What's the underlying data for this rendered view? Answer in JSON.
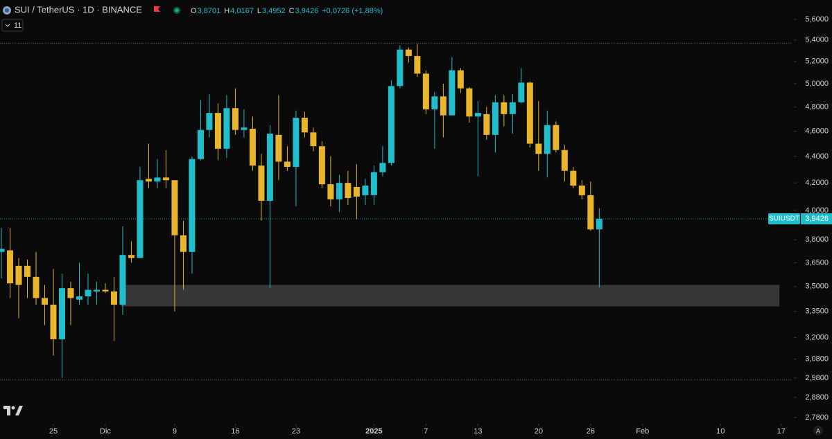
{
  "chart_data": {
    "type": "candlestick",
    "header": {
      "symbol": "SUI / TetherUS · 1D · BINANCE",
      "open_label": "O",
      "open": "3,8701",
      "high_label": "H",
      "high": "4,0167",
      "low_label": "L",
      "low": "3,4952",
      "close_label": "C",
      "close": "3,9426",
      "change": "+0,0726 (+1,88%)",
      "indicator": "11"
    },
    "x": [
      0,
      1,
      2,
      3,
      4,
      5,
      6,
      7,
      8,
      9,
      10,
      11,
      12,
      13,
      14,
      15,
      16,
      17,
      18,
      19,
      20,
      21,
      22,
      23,
      24,
      25,
      26,
      27,
      28,
      29,
      30,
      31,
      32,
      33,
      34,
      35,
      36,
      37,
      38,
      39,
      40,
      41,
      42,
      43,
      44,
      45,
      46,
      47,
      48,
      49,
      50,
      51,
      52,
      53,
      54,
      55,
      56,
      57,
      58,
      59,
      60,
      61,
      62,
      63,
      64,
      65,
      66,
      67,
      68,
      69
    ],
    "open": [
      3.72,
      3.73,
      3.63,
      3.63,
      3.56,
      3.43,
      3.39,
      3.19,
      3.49,
      3.42,
      3.44,
      3.47,
      3.48,
      3.47,
      3.39,
      3.7,
      3.68,
      4.23,
      4.21,
      4.24,
      4.22,
      3.83,
      3.72,
      4.38,
      4.61,
      4.75,
      4.46,
      4.79,
      4.61,
      4.62,
      4.33,
      4.07,
      4.57,
      4.36,
      4.32,
      4.71,
      4.59,
      4.48,
      4.19,
      4.08,
      4.2,
      4.17,
      4.11,
      4.11,
      4.28,
      4.35,
      4.98,
      5.31,
      5.25,
      5.09,
      4.78,
      4.89,
      4.73,
      5.12,
      4.96,
      4.72,
      4.74,
      4.57,
      4.84,
      4.74,
      4.84,
      5.01,
      4.5,
      4.42,
      4.65,
      4.45,
      4.29,
      4.18,
      4.11,
      3.8701
    ],
    "high": [
      3.88,
      3.88,
      3.68,
      3.67,
      3.72,
      3.51,
      3.61,
      3.58,
      3.53,
      3.65,
      3.58,
      3.53,
      3.52,
      3.56,
      3.89,
      3.79,
      4.32,
      4.5,
      4.38,
      4.45,
      4.22,
      3.93,
      4.4,
      4.86,
      4.91,
      4.83,
      4.9,
      4.96,
      4.78,
      4.72,
      4.42,
      4.65,
      4.9,
      4.48,
      4.77,
      4.76,
      4.63,
      4.52,
      4.4,
      4.26,
      4.29,
      4.34,
      4.23,
      4.33,
      4.48,
      5.03,
      5.35,
      5.33,
      5.36,
      5.12,
      4.93,
      5.0,
      5.24,
      5.14,
      4.97,
      4.85,
      4.8,
      4.9,
      4.9,
      4.91,
      5.14,
      5.02,
      4.85,
      4.77,
      4.68,
      4.49,
      4.32,
      4.22,
      4.21,
      4.0167
    ],
    "low": [
      3.55,
      3.43,
      3.31,
      3.43,
      3.39,
      3.27,
      3.1,
      2.98,
      3.27,
      3.39,
      3.39,
      3.39,
      3.46,
      3.18,
      3.33,
      3.65,
      3.68,
      4.16,
      4.16,
      4.16,
      3.35,
      3.48,
      3.58,
      4.37,
      4.55,
      4.37,
      4.39,
      4.57,
      4.55,
      4.29,
      3.93,
      3.49,
      4.22,
      4.29,
      4.03,
      4.55,
      4.44,
      4.16,
      4.03,
      3.99,
      4.04,
      3.94,
      4.04,
      4.04,
      4.25,
      4.33,
      4.96,
      5.19,
      5.06,
      4.74,
      4.46,
      4.55,
      4.73,
      4.92,
      4.67,
      4.25,
      4.53,
      4.43,
      4.64,
      4.58,
      4.83,
      4.47,
      4.29,
      4.24,
      4.43,
      4.21,
      4.16,
      4.08,
      3.86,
      3.4952
    ],
    "close": [
      3.74,
      3.52,
      3.51,
      3.56,
      3.43,
      3.39,
      3.19,
      3.49,
      3.43,
      3.44,
      3.48,
      3.48,
      3.47,
      3.39,
      3.7,
      3.68,
      4.22,
      4.21,
      4.24,
      4.22,
      3.83,
      3.72,
      4.38,
      4.61,
      4.75,
      4.46,
      4.79,
      4.61,
      4.63,
      4.33,
      4.07,
      4.58,
      4.36,
      4.32,
      4.71,
      4.59,
      4.48,
      4.19,
      4.08,
      4.2,
      4.09,
      4.1,
      4.18,
      4.28,
      4.35,
      4.98,
      5.31,
      5.25,
      5.09,
      4.78,
      4.89,
      4.73,
      5.12,
      4.96,
      4.72,
      4.75,
      4.57,
      4.84,
      4.74,
      4.84,
      5.01,
      4.5,
      4.42,
      4.65,
      4.45,
      4.29,
      4.18,
      4.11,
      3.87,
      3.9426
    ],
    "up_color": "#22bdcb",
    "down_color": "#e8b52c",
    "log_scale": true,
    "ylim": [
      2.756,
      5.794
    ],
    "yticks": [
      {
        "value": 2.78,
        "label": "2,7800"
      },
      {
        "value": 2.88,
        "label": "2,8800"
      },
      {
        "value": 2.98,
        "label": "2,9800"
      },
      {
        "value": 3.08,
        "label": "3,0800"
      },
      {
        "value": 3.2,
        "label": "3,2000"
      },
      {
        "value": 3.35,
        "label": "3,3500"
      },
      {
        "value": 3.5,
        "label": "3,5000"
      },
      {
        "value": 3.65,
        "label": "3,6500"
      },
      {
        "value": 3.8,
        "label": "3,8000"
      },
      {
        "value": 4.0,
        "label": "4,0000"
      },
      {
        "value": 4.2,
        "label": "4,2000"
      },
      {
        "value": 4.4,
        "label": "4,4000"
      },
      {
        "value": 4.6,
        "label": "4,6000"
      },
      {
        "value": 4.8,
        "label": "4,8000"
      },
      {
        "value": 5.0,
        "label": "5,0000"
      },
      {
        "value": 5.2,
        "label": "5,2000"
      },
      {
        "value": 5.4,
        "label": "5,4000"
      },
      {
        "value": 5.6,
        "label": "5,6000"
      }
    ],
    "xlim": [
      -0.16,
      91.3
    ],
    "xticks": [
      {
        "value": 6,
        "label": "25"
      },
      {
        "value": 12,
        "label": "Dic"
      },
      {
        "value": 20,
        "label": "9"
      },
      {
        "value": 27,
        "label": "16"
      },
      {
        "value": 34,
        "label": "23"
      },
      {
        "value": 43,
        "label": "2025"
      },
      {
        "value": 49,
        "label": "7"
      },
      {
        "value": 55,
        "label": "13"
      },
      {
        "value": 62,
        "label": "20"
      },
      {
        "value": 68,
        "label": "26"
      },
      {
        "value": 74,
        "label": "Feb"
      },
      {
        "value": 83,
        "label": "10"
      },
      {
        "value": 90,
        "label": "17"
      }
    ],
    "zone": {
      "low": 3.38,
      "high": 3.51,
      "x_start": 13.8,
      "x_end": 89.8,
      "color": "#363636"
    },
    "range_lines": [
      5.37,
      2.97
    ],
    "last_price": {
      "name": "SUIUSDT",
      "value": 3.9426,
      "label": "3,9426"
    }
  }
}
